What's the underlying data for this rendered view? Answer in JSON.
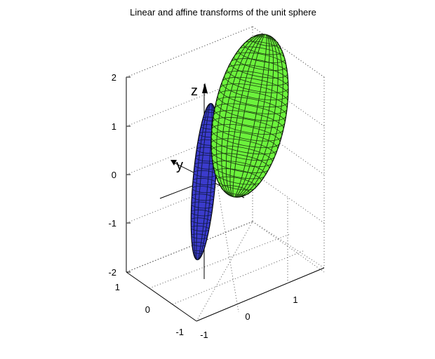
{
  "chart_data": {
    "type": "3d-surface",
    "title": "Linear and affine transforms of the unit sphere",
    "zlim": [
      -2,
      2
    ],
    "z_ticks": [
      "2",
      "1",
      "0",
      "-1",
      "-2"
    ],
    "x_ticks": [
      "-1",
      "0",
      "1"
    ],
    "y_ticks": [
      "1",
      "0",
      "-1"
    ],
    "grid": true,
    "axis_labels": {
      "z": "z",
      "y": "y"
    },
    "series": [
      {
        "color": "#3b3bcc",
        "center": [
          0,
          0,
          0
        ],
        "semi_axes": [
          0.1,
          0.6,
          1.7
        ]
      },
      {
        "color": "#6cf23c",
        "center": [
          1,
          0.6,
          1.2
        ],
        "semi_axes": [
          0.8,
          0.8,
          1.6
        ]
      }
    ]
  }
}
